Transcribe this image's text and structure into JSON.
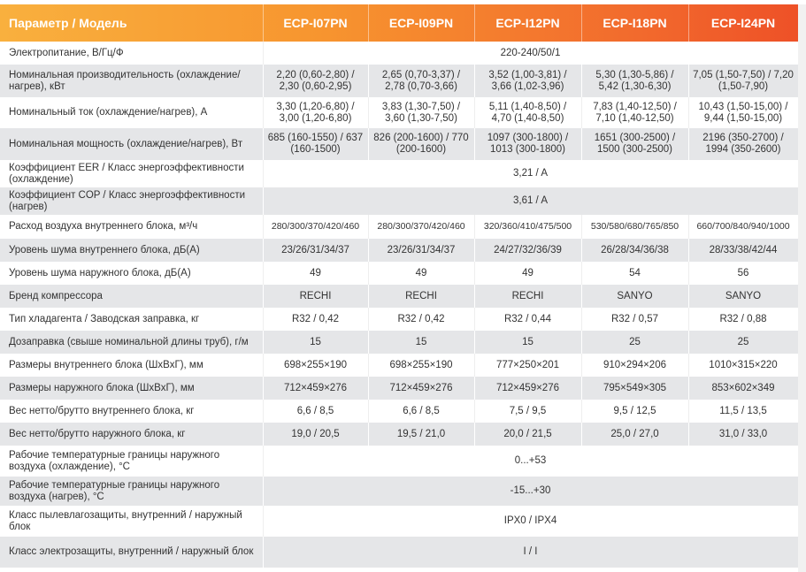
{
  "header": {
    "param": "Параметр / Модель",
    "models": [
      "ECP-I07PN",
      "ECP-I09PN",
      "ECP-I12PN",
      "ECP-I18PN",
      "ECP-I24PN"
    ]
  },
  "rows": [
    {
      "label": "Электропитание, В/Гц/Ф",
      "span": "220-240/50/1"
    },
    {
      "label": "Номинальная производительность (охлаждение/нагрев), кВт",
      "values": [
        "2,20 (0,60-2,80) / 2,30 (0,60-2,95)",
        "2,65 (0,70-3,37) / 2,78 (0,70-3,66)",
        "3,52 (1,00-3,81) / 3,66 (1,02-3,96)",
        "5,30 (1,30-5,86) / 5,42 (1,30-6,30)",
        "7,05 (1,50-7,50) / 7,20 (1,50-7,90)"
      ]
    },
    {
      "label": "Номинальный ток (охлаждение/нагрев), А",
      "values": [
        "3,30 (1,20-6,80) / 3,00 (1,20-6,80)",
        "3,83 (1,30-7,50) / 3,60 (1,30-7,50)",
        "5,11 (1,40-8,50) / 4,70 (1,40-8,50)",
        "7,83 (1,40-12,50) / 7,10 (1,40-12,50)",
        "10,43 (1,50-15,00) / 9,44 (1,50-15,00)"
      ]
    },
    {
      "label": "Номинальная мощность (охлаждение/нагрев), Вт",
      "values": [
        "685 (160-1550) / 637 (160-1500)",
        "826 (200-1600) / 770 (200-1600)",
        "1097 (300-1800) / 1013 (300-1800)",
        "1651 (300-2500) / 1500 (300-2500)",
        "2196 (350-2700) / 1994 (350-2600)"
      ]
    },
    {
      "label": "Коэффициент EER / Класс энергоэффективности (охлаждение)",
      "span": "3,21 / A"
    },
    {
      "label": "Коэффициент COP / Класс энергоэффективности (нагрев)",
      "span": "3,61 / A"
    },
    {
      "label": "Расход воздуха внутреннего блока, м³/ч",
      "values": [
        "280/300/370/420/460",
        "280/300/370/420/460",
        "320/360/410/475/500",
        "530/580/680/765/850",
        "660/700/840/940/1000"
      ],
      "small": true
    },
    {
      "label": "Уровень шума внутреннего блока, дБ(А)",
      "values": [
        "23/26/31/34/37",
        "23/26/31/34/37",
        "24/27/32/36/39",
        "26/28/34/36/38",
        "28/33/38/42/44"
      ]
    },
    {
      "label": "Уровень шума наружного блока, дБ(А)",
      "values": [
        "49",
        "49",
        "49",
        "54",
        "56"
      ]
    },
    {
      "label": "Бренд компрессора",
      "values": [
        "RECHI",
        "RECHI",
        "RECHI",
        "SANYO",
        "SANYO"
      ]
    },
    {
      "label": "Тип хладагента / Заводская заправка, кг",
      "values": [
        "R32 / 0,42",
        "R32 / 0,42",
        "R32 / 0,44",
        "R32 / 0,57",
        "R32 / 0,88"
      ]
    },
    {
      "label": "Дозаправка (свыше номинальной длины труб), г/м",
      "values": [
        "15",
        "15",
        "15",
        "25",
        "25"
      ]
    },
    {
      "label": "Размеры внутреннего блока (ШхВхГ), мм",
      "values": [
        "698×255×190",
        "698×255×190",
        "777×250×201",
        "910×294×206",
        "1010×315×220"
      ]
    },
    {
      "label": "Размеры наружного блока (ШхВхГ), мм",
      "values": [
        "712×459×276",
        "712×459×276",
        "712×459×276",
        "795×549×305",
        "853×602×349"
      ]
    },
    {
      "label": "Вес нетто/брутто внутреннего блока, кг",
      "values": [
        "6,6 / 8,5",
        "6,6 / 8,5",
        "7,5 / 9,5",
        "9,5 / 12,5",
        "11,5 / 13,5"
      ]
    },
    {
      "label": "Вес нетто/брутто наружного блока, кг",
      "values": [
        "19,0 / 20,5",
        "19,5 / 21,0",
        "20,0 / 21,5",
        "25,0 / 27,0",
        "31,0 / 33,0"
      ]
    },
    {
      "label": "Рабочие температурные границы наружного воздуха (охлаждение), °С",
      "span": "0...+53"
    },
    {
      "label": "Рабочие температурные границы наружного воздуха (нагрев), °С",
      "span": "-15...+30"
    },
    {
      "label": "Класс пылевлагозащиты, внутренний / наружный блок",
      "span": "IPX0 / IPX4"
    },
    {
      "label": "Класс электрозащиты, внутренний / наружный блок",
      "span": "I / I"
    }
  ]
}
